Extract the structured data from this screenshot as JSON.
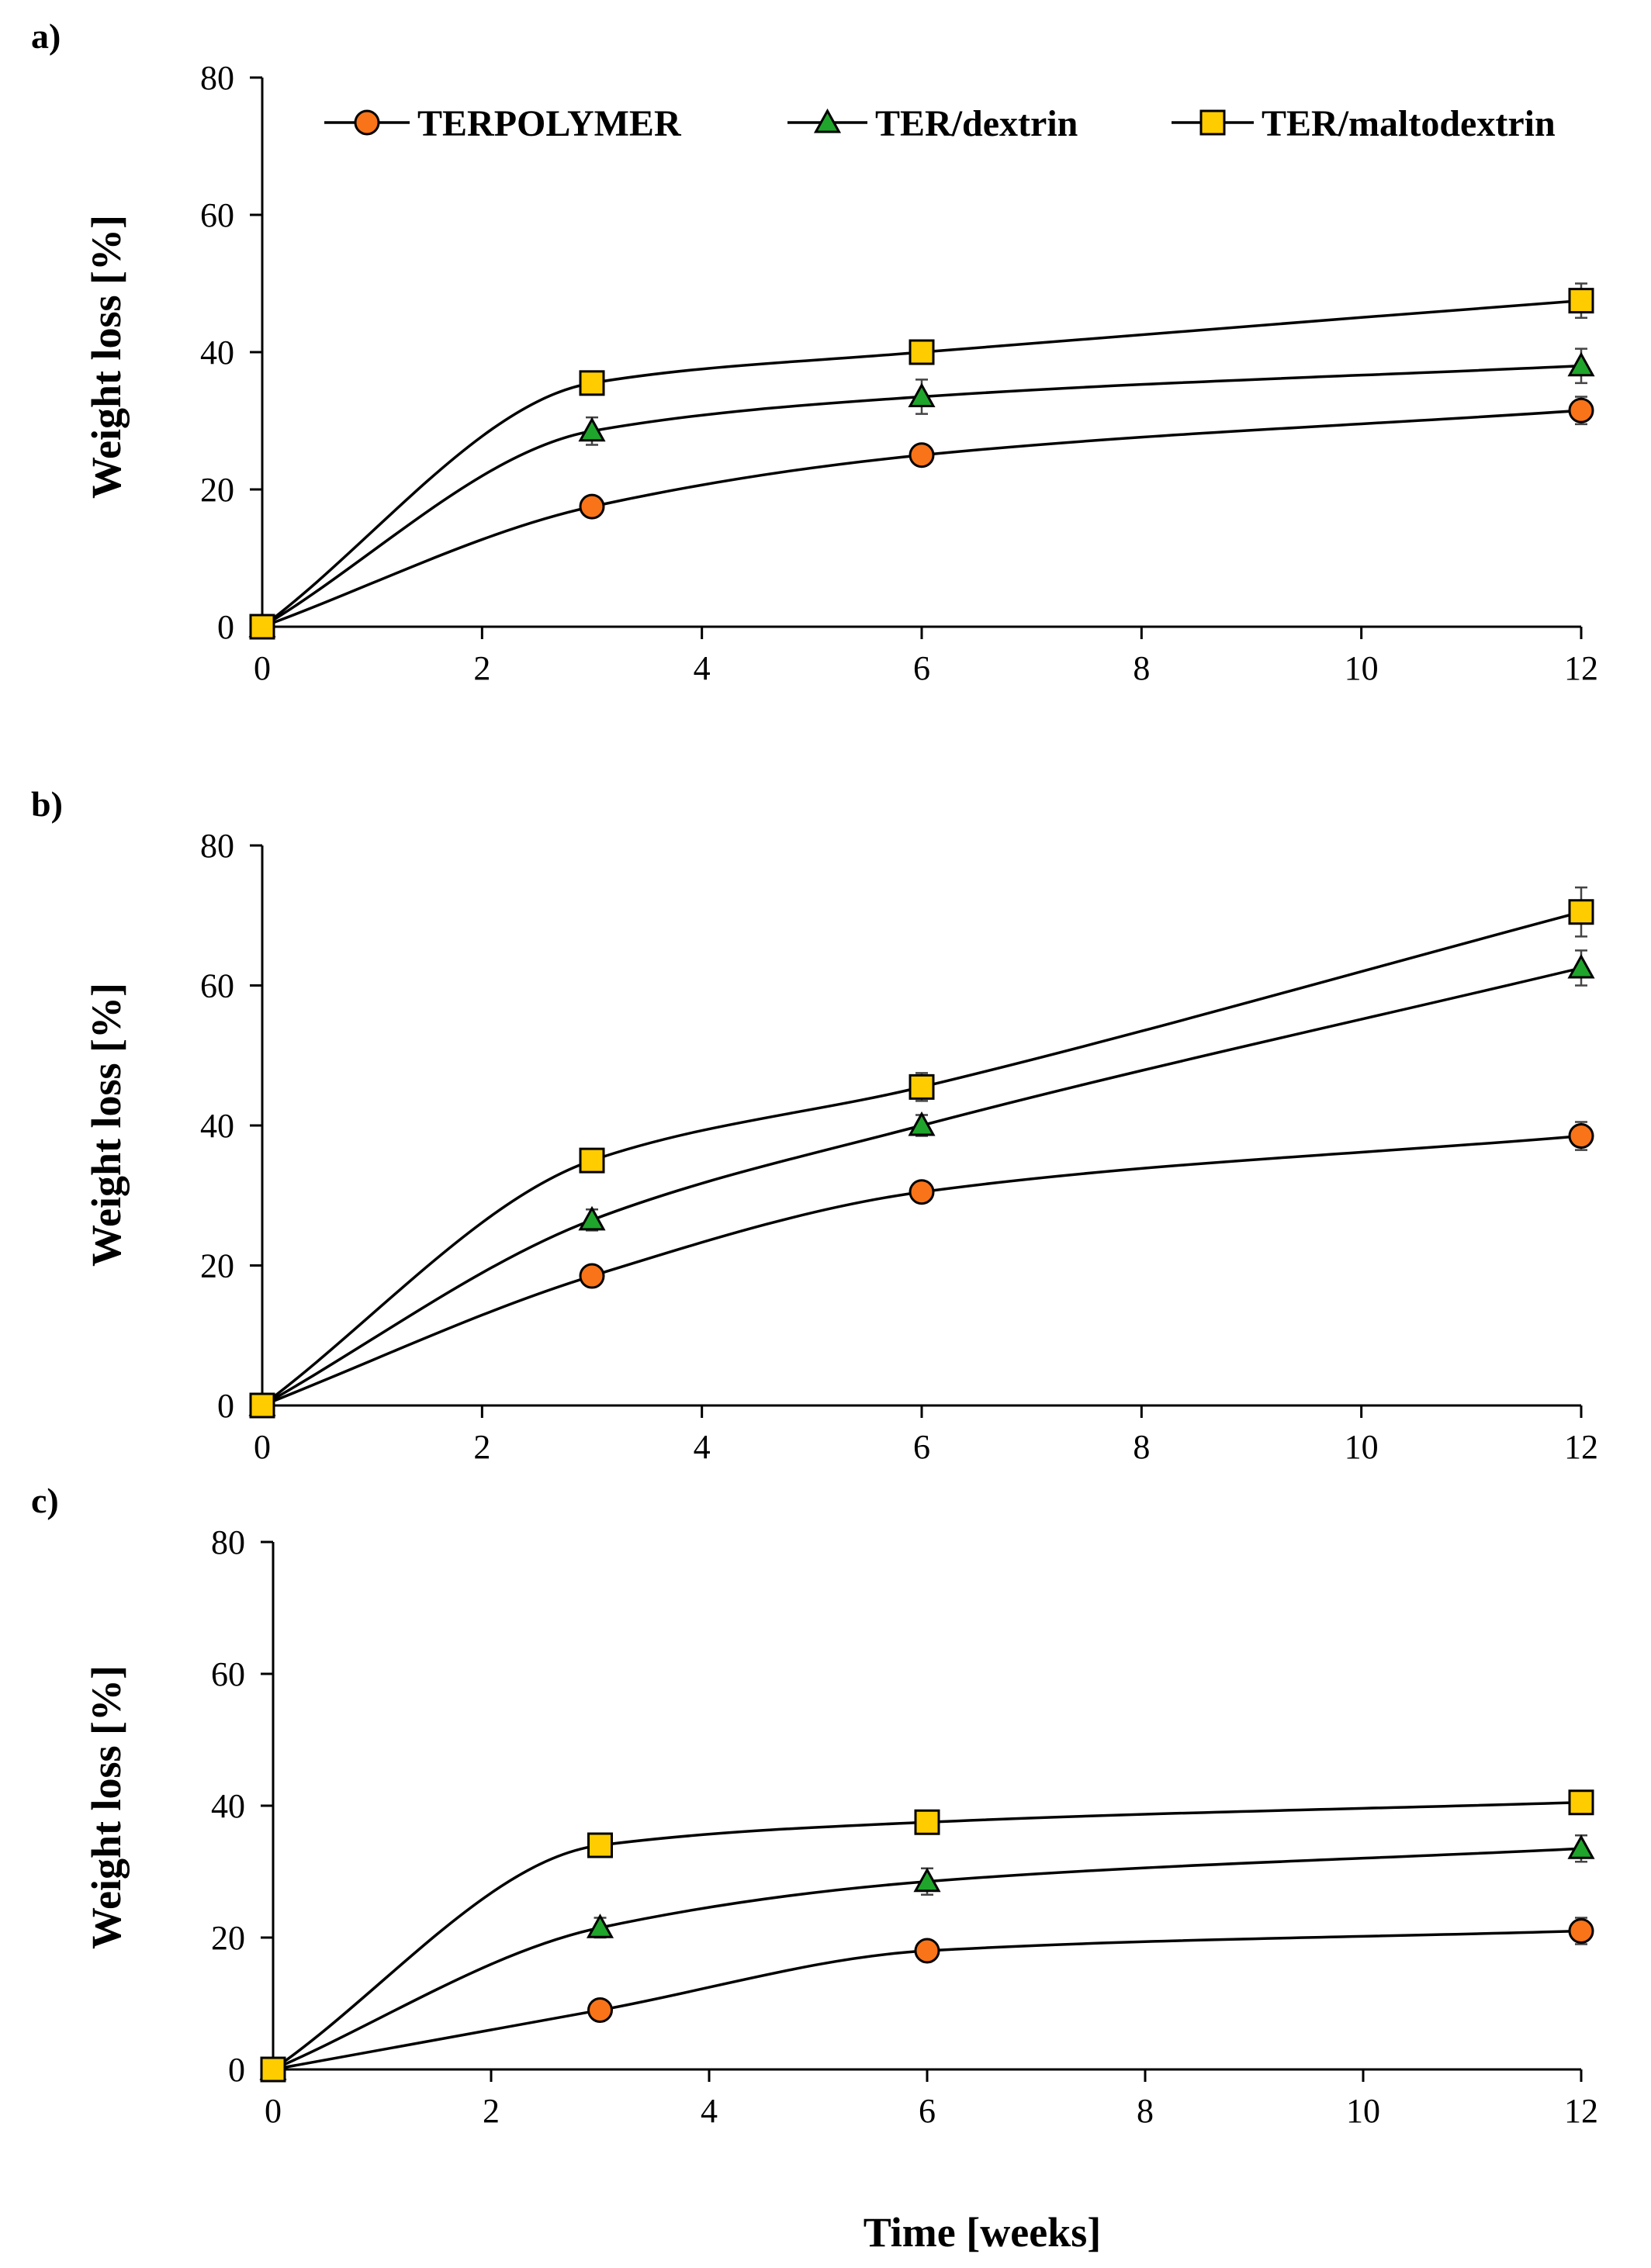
{
  "colors": {
    "TERPOLYMER": "#F97318",
    "TER/dextrin": "#1FA52B",
    "TER/maltodextrin": "#FFCC00",
    "axis": "#000000",
    "curve": "#000000"
  },
  "legend": [
    {
      "name": "TERPOLYMER",
      "marker": "circle"
    },
    {
      "name": "TER/dextrin",
      "marker": "triangle"
    },
    {
      "name": "TER/maltodextrin",
      "marker": "square"
    }
  ],
  "shared_xlabel": "Time  [weeks]",
  "chart_data": [
    {
      "type": "line",
      "panel_label": "a)",
      "ylabel": "Weight  loss  [%]",
      "xlabel": "Time  [weeks]",
      "xlim": [
        0,
        12
      ],
      "ylim": [
        0,
        80
      ],
      "xticks": [
        0,
        2,
        4,
        6,
        8,
        10,
        12
      ],
      "yticks": [
        0,
        20,
        40,
        60,
        80
      ],
      "x": [
        0,
        3,
        6,
        12
      ],
      "series": [
        {
          "name": "TERPOLYMER",
          "marker": "circle",
          "values": [
            0,
            17.5,
            25,
            31.5
          ],
          "errors": [
            0,
            1,
            1,
            2
          ]
        },
        {
          "name": "TER/dextrin",
          "marker": "triangle",
          "values": [
            0,
            28.5,
            33.5,
            38
          ],
          "errors": [
            0,
            2,
            2.5,
            2.5
          ]
        },
        {
          "name": "TER/maltodextrin",
          "marker": "square",
          "values": [
            0,
            35.5,
            40,
            47.5
          ],
          "errors": [
            0,
            1.5,
            1.5,
            2.5
          ]
        }
      ]
    },
    {
      "type": "line",
      "panel_label": "b)",
      "ylabel": "Weight  loss  [%]",
      "xlabel": "Time  [weeks]",
      "xlim": [
        0,
        12
      ],
      "ylim": [
        0,
        80
      ],
      "xticks": [
        0,
        2,
        4,
        6,
        8,
        10,
        12
      ],
      "yticks": [
        0,
        20,
        40,
        60,
        80
      ],
      "x": [
        0,
        3,
        6,
        12
      ],
      "series": [
        {
          "name": "TERPOLYMER",
          "marker": "circle",
          "values": [
            0,
            18.5,
            30.5,
            38.5
          ],
          "errors": [
            0,
            1,
            1.5,
            2
          ]
        },
        {
          "name": "TER/dextrin",
          "marker": "triangle",
          "values": [
            0,
            26.5,
            40,
            62.5
          ],
          "errors": [
            0,
            1.5,
            1.5,
            2.5
          ]
        },
        {
          "name": "TER/maltodextrin",
          "marker": "square",
          "values": [
            0,
            35,
            45.5,
            70.5
          ],
          "errors": [
            0,
            1.5,
            2,
            3.5
          ]
        }
      ]
    },
    {
      "type": "line",
      "panel_label": "c)",
      "ylabel": "Weight  loss  [%]",
      "xlabel": "Time  [weeks]",
      "xlim": [
        0,
        12
      ],
      "ylim": [
        0,
        80
      ],
      "xticks": [
        0,
        2,
        4,
        6,
        8,
        10,
        12
      ],
      "yticks": [
        0,
        20,
        40,
        60,
        80
      ],
      "x": [
        0,
        3,
        6,
        12
      ],
      "series": [
        {
          "name": "TERPOLYMER",
          "marker": "circle",
          "values": [
            0,
            9,
            18,
            21
          ],
          "errors": [
            0,
            1,
            1,
            2
          ]
        },
        {
          "name": "TER/dextrin",
          "marker": "triangle",
          "values": [
            0,
            21.5,
            28.5,
            33.5
          ],
          "errors": [
            0,
            1.5,
            2,
            2
          ]
        },
        {
          "name": "TER/maltodextrin",
          "marker": "square",
          "values": [
            0,
            34,
            37.5,
            40.5
          ],
          "errors": [
            0,
            1,
            1,
            1.5
          ]
        }
      ]
    }
  ]
}
